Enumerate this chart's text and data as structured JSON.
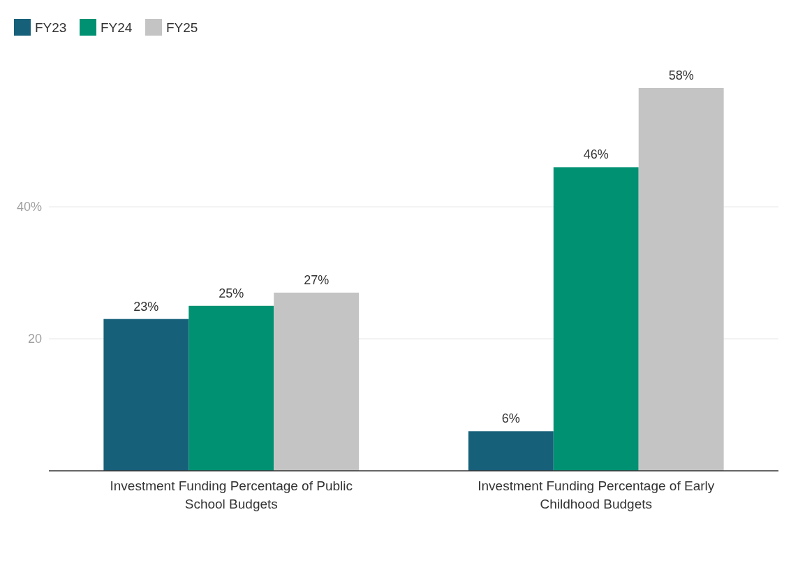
{
  "chart_data": {
    "type": "bar",
    "categories": [
      "Investment Funding Percentage of Public School Budgets",
      "Investment Funding Percentage of Early Childhood Budgets"
    ],
    "series": [
      {
        "name": "FY23",
        "color": "#17607a",
        "values": [
          23,
          6
        ],
        "value_labels": [
          "23%",
          "6%"
        ]
      },
      {
        "name": "FY24",
        "color": "#009173",
        "values": [
          25,
          46
        ],
        "value_labels": [
          "25%",
          "46%"
        ]
      },
      {
        "name": "FY25",
        "color": "#c4c4c4",
        "values": [
          27,
          58
        ],
        "value_labels": [
          "27%",
          "58%"
        ]
      }
    ],
    "ylim": [
      0,
      58
    ],
    "yticks": [
      20,
      {
        "value": 40,
        "label": "40%"
      }
    ],
    "grid": "y",
    "legend": "top left"
  }
}
